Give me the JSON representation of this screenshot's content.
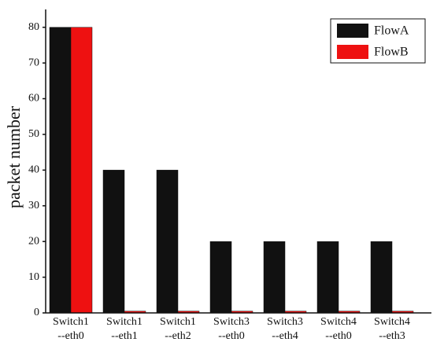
{
  "chart_data": {
    "type": "bar",
    "ylabel": "packet number",
    "categories": [
      [
        "Switch1",
        "--eth0"
      ],
      [
        "Switch1",
        "--eth1"
      ],
      [
        "Switch1",
        "--eth2"
      ],
      [
        "Switch3",
        "--eth0"
      ],
      [
        "Switch3",
        "--eth4"
      ],
      [
        "Switch4",
        "--eth0"
      ],
      [
        "Switch4",
        "--eth3"
      ]
    ],
    "series": [
      {
        "name": "FlowA",
        "color": "#111111",
        "values": [
          80,
          40,
          40,
          20,
          20,
          20,
          20
        ]
      },
      {
        "name": "FlowB",
        "color": "#ee1111",
        "values": [
          80,
          0.5,
          0.5,
          0.5,
          0.5,
          0.5,
          0.5
        ]
      }
    ],
    "ylim": [
      0,
      85
    ],
    "yticks": [
      0,
      10,
      20,
      30,
      40,
      50,
      60,
      70,
      80
    ],
    "legend": "upper right"
  }
}
